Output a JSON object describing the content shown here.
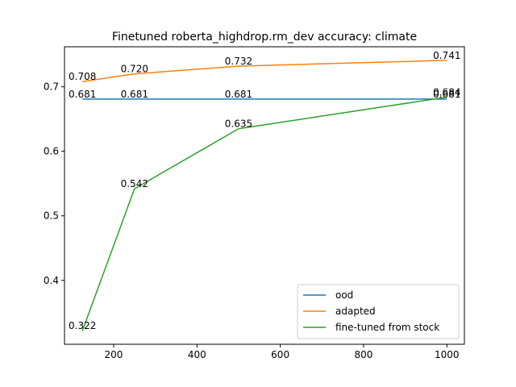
{
  "chart_data": {
    "type": "line",
    "title": "Finetuned roberta_highdrop.rm_dev accuracy: climate",
    "xlabel": "",
    "ylabel": "",
    "x": [
      125,
      250,
      500,
      1000
    ],
    "xlim": [
      82,
      1042
    ],
    "ylim": [
      0.301,
      0.762
    ],
    "xticks": [
      200,
      400,
      600,
      800,
      1000
    ],
    "yticks": [
      0.4,
      0.5,
      0.6,
      0.7
    ],
    "legend_position": "lower right",
    "grid": false,
    "series": [
      {
        "name": "ood",
        "color": "#1f77b4",
        "values": [
          0.681,
          0.681,
          0.681,
          0.681
        ],
        "labels": [
          "0.681",
          "0.681",
          "0.681",
          "0.681"
        ]
      },
      {
        "name": "adapted",
        "color": "#ff7f0e",
        "values": [
          0.708,
          0.72,
          0.732,
          0.741
        ],
        "labels": [
          "0.708",
          "0.720",
          "0.732",
          "0.741"
        ]
      },
      {
        "name": "fine-tuned from stock",
        "color": "#2ca02c",
        "values": [
          0.322,
          0.542,
          0.635,
          0.684
        ],
        "labels": [
          "0.322",
          "0.542",
          "0.635",
          "0.684"
        ]
      }
    ]
  }
}
